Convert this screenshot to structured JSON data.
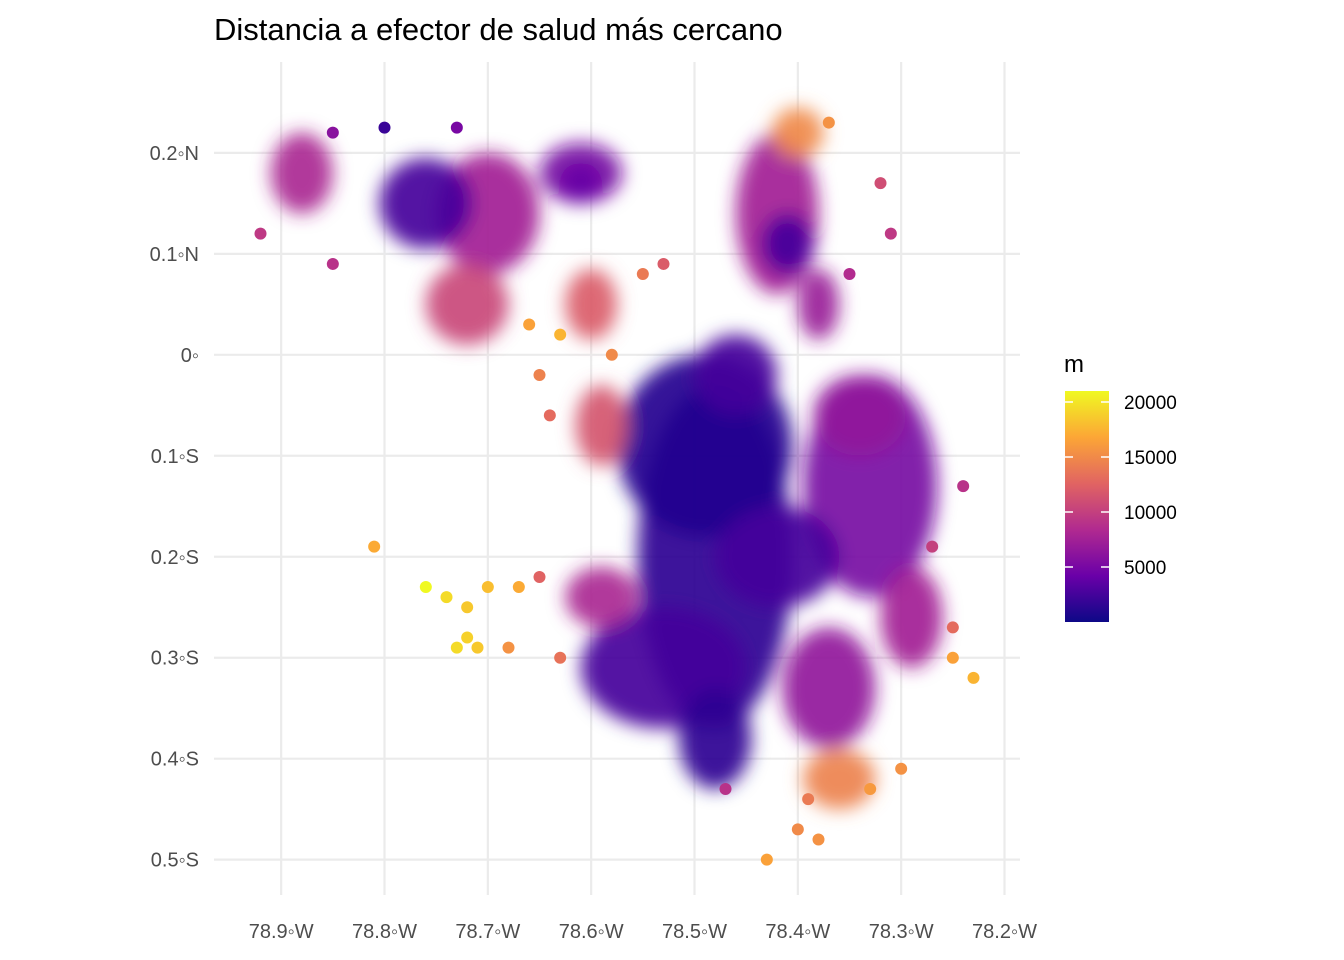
{
  "title": "Distancia a efector de salud más cercano",
  "map": {
    "x_axis": {
      "range": [
        -78.965,
        -78.185
      ],
      "ticks": [
        {
          "value": -78.9,
          "label": "78.9◦W"
        },
        {
          "value": -78.8,
          "label": "78.8◦W"
        },
        {
          "value": -78.7,
          "label": "78.7◦W"
        },
        {
          "value": -78.6,
          "label": "78.6◦W"
        },
        {
          "value": -78.5,
          "label": "78.5◦W"
        },
        {
          "value": -78.4,
          "label": "78.4◦W"
        },
        {
          "value": -78.3,
          "label": "78.3◦W"
        },
        {
          "value": -78.2,
          "label": "78.2◦W"
        }
      ]
    },
    "y_axis": {
      "range": [
        -0.535,
        0.29
      ],
      "ticks": [
        {
          "value": 0.2,
          "label": "0.2◦N"
        },
        {
          "value": 0.1,
          "label": "0.1◦N"
        },
        {
          "value": 0.0,
          "label": "0◦"
        },
        {
          "value": -0.1,
          "label": "0.1◦S"
        },
        {
          "value": -0.2,
          "label": "0.2◦S"
        },
        {
          "value": -0.3,
          "label": "0.3◦S"
        },
        {
          "value": -0.4,
          "label": "0.4◦S"
        },
        {
          "value": -0.5,
          "label": "0.5◦S"
        }
      ]
    },
    "grid": true,
    "regions": [
      {
        "lon": -78.48,
        "lat": -0.2,
        "rx": 0.075,
        "ry": 0.17,
        "m": 1500
      },
      {
        "lon": -78.49,
        "lat": -0.09,
        "rx": 0.085,
        "ry": 0.09,
        "m": 1000
      },
      {
        "lon": -78.46,
        "lat": -0.02,
        "rx": 0.04,
        "ry": 0.04,
        "m": 2500
      },
      {
        "lon": -78.42,
        "lat": -0.2,
        "rx": 0.06,
        "ry": 0.05,
        "m": 2500
      },
      {
        "lon": -78.53,
        "lat": -0.31,
        "rx": 0.08,
        "ry": 0.06,
        "m": 2500
      },
      {
        "lon": -78.48,
        "lat": -0.38,
        "rx": 0.035,
        "ry": 0.05,
        "m": 1500
      },
      {
        "lon": -78.33,
        "lat": -0.13,
        "rx": 0.065,
        "ry": 0.11,
        "m": 5000
      },
      {
        "lon": -78.34,
        "lat": -0.06,
        "rx": 0.045,
        "ry": 0.04,
        "m": 6500
      },
      {
        "lon": -78.29,
        "lat": -0.26,
        "rx": 0.03,
        "ry": 0.05,
        "m": 7500
      },
      {
        "lon": -78.37,
        "lat": -0.33,
        "rx": 0.045,
        "ry": 0.06,
        "m": 6500
      },
      {
        "lon": -78.36,
        "lat": -0.42,
        "rx": 0.035,
        "ry": 0.03,
        "m": 14500
      },
      {
        "lon": -78.59,
        "lat": -0.24,
        "rx": 0.035,
        "ry": 0.03,
        "m": 8000
      },
      {
        "lon": -78.42,
        "lat": 0.14,
        "rx": 0.04,
        "ry": 0.08,
        "m": 7500
      },
      {
        "lon": -78.41,
        "lat": 0.11,
        "rx": 0.025,
        "ry": 0.03,
        "m": 2500
      },
      {
        "lon": -78.4,
        "lat": 0.22,
        "rx": 0.025,
        "ry": 0.025,
        "m": 15000
      },
      {
        "lon": -78.38,
        "lat": 0.05,
        "rx": 0.02,
        "ry": 0.035,
        "m": 7000
      },
      {
        "lon": -78.76,
        "lat": 0.15,
        "rx": 0.045,
        "ry": 0.045,
        "m": 2500
      },
      {
        "lon": -78.7,
        "lat": 0.14,
        "rx": 0.05,
        "ry": 0.06,
        "m": 7500
      },
      {
        "lon": -78.72,
        "lat": 0.05,
        "rx": 0.04,
        "ry": 0.04,
        "m": 10500
      },
      {
        "lon": -78.61,
        "lat": 0.18,
        "rx": 0.04,
        "ry": 0.03,
        "m": 5000
      },
      {
        "lon": -78.88,
        "lat": 0.18,
        "rx": 0.03,
        "ry": 0.04,
        "m": 8000
      },
      {
        "lon": -78.59,
        "lat": -0.07,
        "rx": 0.025,
        "ry": 0.04,
        "m": 11500
      },
      {
        "lon": -78.6,
        "lat": 0.05,
        "rx": 0.025,
        "ry": 0.035,
        "m": 12000
      },
      {
        "lon": -78.61,
        "lat": 0.17,
        "rx": 0.02,
        "ry": 0.02,
        "m": 4000
      }
    ],
    "points": [
      {
        "lon": -78.8,
        "lat": 0.225,
        "m": 2000
      },
      {
        "lon": -78.73,
        "lat": 0.225,
        "m": 5000
      },
      {
        "lon": -78.85,
        "lat": 0.22,
        "m": 6000
      },
      {
        "lon": -78.92,
        "lat": 0.12,
        "m": 9500
      },
      {
        "lon": -78.85,
        "lat": 0.09,
        "m": 9000
      },
      {
        "lon": -78.66,
        "lat": 0.03,
        "m": 16500
      },
      {
        "lon": -78.63,
        "lat": 0.02,
        "m": 17500
      },
      {
        "lon": -78.58,
        "lat": 0.0,
        "m": 15000
      },
      {
        "lon": -78.65,
        "lat": -0.02,
        "m": 14500
      },
      {
        "lon": -78.64,
        "lat": -0.06,
        "m": 13000
      },
      {
        "lon": -78.55,
        "lat": 0.08,
        "m": 14000
      },
      {
        "lon": -78.53,
        "lat": 0.09,
        "m": 12000
      },
      {
        "lon": -78.37,
        "lat": 0.23,
        "m": 15500
      },
      {
        "lon": -78.32,
        "lat": 0.17,
        "m": 11000
      },
      {
        "lon": -78.31,
        "lat": 0.12,
        "m": 9500
      },
      {
        "lon": -78.35,
        "lat": 0.08,
        "m": 8500
      },
      {
        "lon": -78.81,
        "lat": -0.19,
        "m": 17000
      },
      {
        "lon": -78.76,
        "lat": -0.23,
        "m": 21000
      },
      {
        "lon": -78.74,
        "lat": -0.24,
        "m": 19500
      },
      {
        "lon": -78.7,
        "lat": -0.23,
        "m": 18000
      },
      {
        "lon": -78.67,
        "lat": -0.23,
        "m": 17000
      },
      {
        "lon": -78.72,
        "lat": -0.25,
        "m": 18500
      },
      {
        "lon": -78.72,
        "lat": -0.28,
        "m": 19000
      },
      {
        "lon": -78.73,
        "lat": -0.29,
        "m": 19500
      },
      {
        "lon": -78.71,
        "lat": -0.29,
        "m": 18500
      },
      {
        "lon": -78.68,
        "lat": -0.29,
        "m": 15500
      },
      {
        "lon": -78.63,
        "lat": -0.3,
        "m": 13500
      },
      {
        "lon": -78.65,
        "lat": -0.22,
        "m": 12500
      },
      {
        "lon": -78.25,
        "lat": -0.3,
        "m": 16500
      },
      {
        "lon": -78.23,
        "lat": -0.32,
        "m": 17500
      },
      {
        "lon": -78.25,
        "lat": -0.27,
        "m": 13000
      },
      {
        "lon": -78.27,
        "lat": -0.19,
        "m": 10000
      },
      {
        "lon": -78.24,
        "lat": -0.13,
        "m": 9000
      },
      {
        "lon": -78.3,
        "lat": -0.41,
        "m": 15500
      },
      {
        "lon": -78.33,
        "lat": -0.43,
        "m": 16000
      },
      {
        "lon": -78.39,
        "lat": -0.44,
        "m": 14000
      },
      {
        "lon": -78.4,
        "lat": -0.47,
        "m": 15000
      },
      {
        "lon": -78.38,
        "lat": -0.48,
        "m": 15500
      },
      {
        "lon": -78.43,
        "lat": -0.5,
        "m": 16500
      },
      {
        "lon": -78.47,
        "lat": -0.43,
        "m": 9000
      }
    ]
  },
  "legend": {
    "title": "m",
    "min": 0,
    "max": 21000,
    "ticks": [
      {
        "value": 5000,
        "label": "5000"
      },
      {
        "value": 10000,
        "label": "10000"
      },
      {
        "value": 15000,
        "label": "15000"
      },
      {
        "value": 20000,
        "label": "20000"
      }
    ],
    "palette": [
      "#0d0887",
      "#6a00a8",
      "#b12a90",
      "#e16462",
      "#fca636",
      "#f0f921"
    ]
  }
}
